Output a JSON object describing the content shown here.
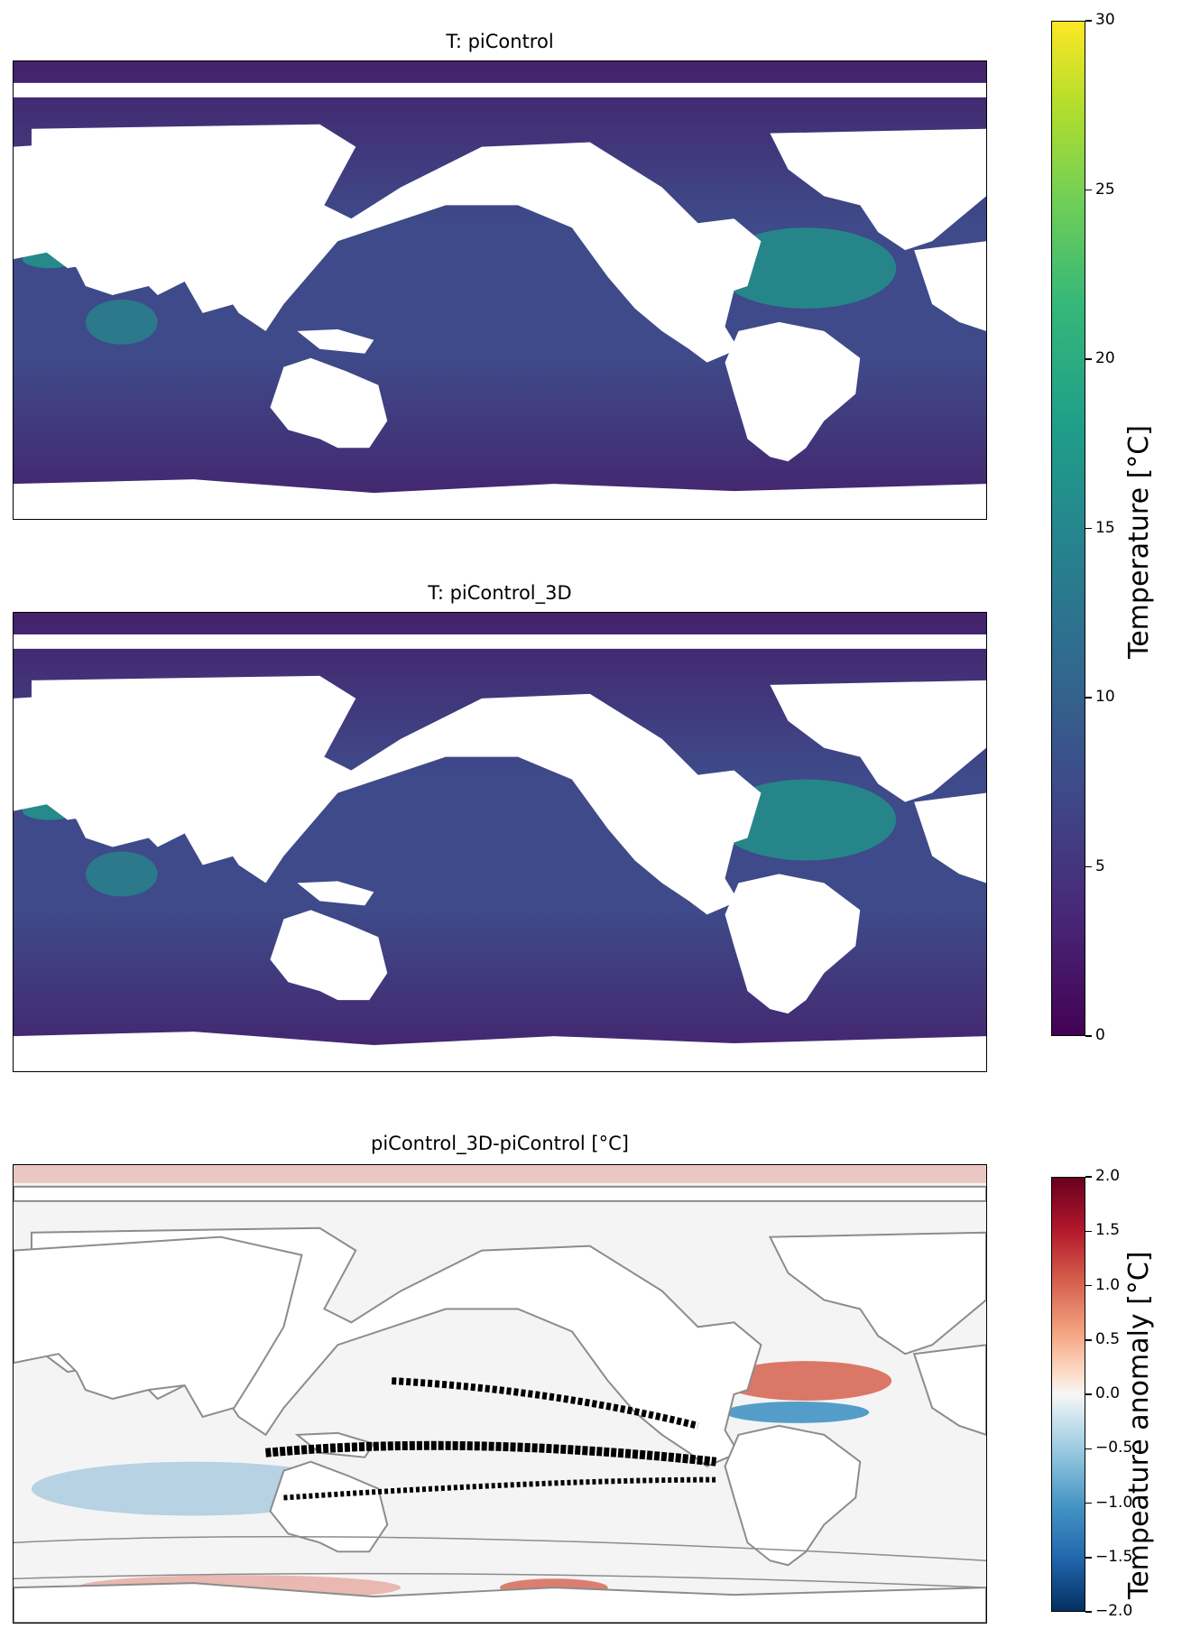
{
  "chart_data": [
    {
      "type": "heatmap",
      "title": "T: piControl",
      "xlabel": "",
      "ylabel": "",
      "colormap": "viridis",
      "value_range": [
        0,
        30
      ],
      "colorbar_label": "Temperature [°C]",
      "colorbar_ticks": [
        "0",
        "5",
        "10",
        "15",
        "20",
        "25",
        "30"
      ],
      "colorbar_tick_values": [
        0,
        5,
        10,
        15,
        20,
        25,
        30
      ]
    },
    {
      "type": "heatmap",
      "title": "T: piControl_3D",
      "xlabel": "",
      "ylabel": "",
      "colormap": "viridis",
      "value_range": [
        0,
        30
      ],
      "shared_colorbar": true
    },
    {
      "type": "heatmap",
      "title": "piControl_3D-piControl [°C]",
      "xlabel": "",
      "ylabel": "",
      "colormap": "RdBu_r",
      "value_range": [
        -2.0,
        2.0
      ],
      "colorbar_label": "Tempeature anomaly [°C]",
      "colorbar_ticks": [
        "2.0",
        "1.5",
        "1.0",
        "0.5",
        "0.0",
        "−0.5",
        "−1.0",
        "−1.5",
        "−2.0"
      ],
      "colorbar_tick_values": [
        2.0,
        1.5,
        1.0,
        0.5,
        0.0,
        -0.5,
        -1.0,
        -1.5,
        -2.0
      ]
    }
  ],
  "colors": {
    "deep_ocean": "#44216b",
    "mid_ocean": "#3e4a89",
    "warm_ocean": "#1f9a8a",
    "land": "#ffffff",
    "contour": "#8c8c8c",
    "stipple": "#000000",
    "anomaly_pos": "#d6604d",
    "anomaly_neg": "#4393c3"
  }
}
